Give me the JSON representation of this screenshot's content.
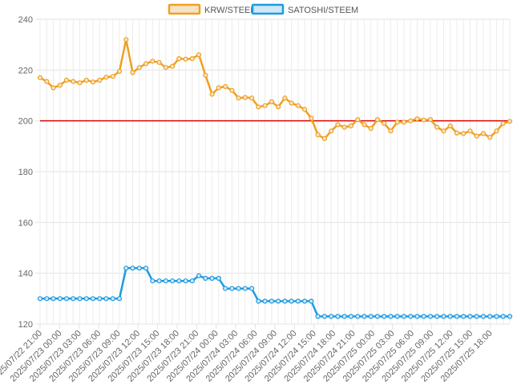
{
  "chart_data": {
    "type": "line",
    "title": "",
    "xlabel": "",
    "ylabel": "",
    "ylim": [
      120,
      240
    ],
    "yticks": [
      120,
      140,
      160,
      180,
      200,
      220,
      240
    ],
    "grid": true,
    "legend_position": "top-center",
    "reference_line": {
      "value": 200,
      "color": "#e00000"
    },
    "x_tick_labels": [
      "2025/07/22 21:00",
      "2025/07/23 00:00",
      "2025/07/23 03:00",
      "2025/07/23 06:00",
      "2025/07/23 09:00",
      "2025/07/23 12:00",
      "2025/07/23 15:00",
      "2025/07/23 18:00",
      "2025/07/23 21:00",
      "2025/07/24 00:00",
      "2025/07/24 03:00",
      "2025/07/24 06:00",
      "2025/07/24 09:00",
      "2025/07/24 12:00",
      "2025/07/24 15:00",
      "2025/07/24 18:00",
      "2025/07/24 21:00",
      "2025/07/25 00:00",
      "2025/07/25 03:00",
      "2025/07/25 06:00",
      "2025/07/25 09:00",
      "2025/07/25 12:00",
      "2025/07/25 15:00",
      "2025/07/25 18:00"
    ],
    "series": [
      {
        "name": "KRW/STEEM",
        "color": "#f0a020",
        "fill": "#f5e3c8",
        "values": [
          217,
          215.5,
          213,
          214,
          216,
          215.5,
          215,
          216,
          215.3,
          216,
          217.2,
          217.5,
          219.5,
          232,
          219,
          221,
          222.5,
          223.5,
          223,
          221,
          221.5,
          224.5,
          224.3,
          224.5,
          226,
          218,
          210.5,
          213,
          213.5,
          212,
          209,
          209.2,
          209,
          205.5,
          206,
          207.5,
          205.5,
          209,
          207,
          206,
          204.5,
          201,
          194.5,
          193,
          196,
          198.5,
          197.5,
          198,
          200.5,
          198.5,
          197,
          200.5,
          199,
          196,
          199.5,
          199.5,
          200,
          200.8,
          200.3,
          200.5,
          197.5,
          196,
          198,
          195.2,
          195,
          196,
          194,
          195,
          193.5,
          196,
          199,
          199.8
        ]
      },
      {
        "name": "SATOSHI/STEEM",
        "color": "#1e9be0",
        "fill": "#cfe7f6",
        "values": [
          130,
          130,
          130,
          130,
          130,
          130,
          130,
          130,
          130,
          130,
          130,
          130,
          130,
          142,
          142,
          142,
          142,
          137,
          137,
          137,
          137,
          137,
          137,
          137,
          139,
          138,
          138,
          138,
          134,
          134,
          134,
          134,
          134,
          129,
          129,
          129,
          129,
          129,
          129,
          129,
          129,
          129,
          123,
          123,
          123,
          123,
          123,
          123,
          123,
          123,
          123,
          123,
          123,
          123,
          123,
          123,
          123,
          123,
          123,
          123,
          123,
          123,
          123,
          123,
          123,
          123,
          123,
          123,
          123,
          123,
          123,
          123
        ]
      }
    ]
  }
}
